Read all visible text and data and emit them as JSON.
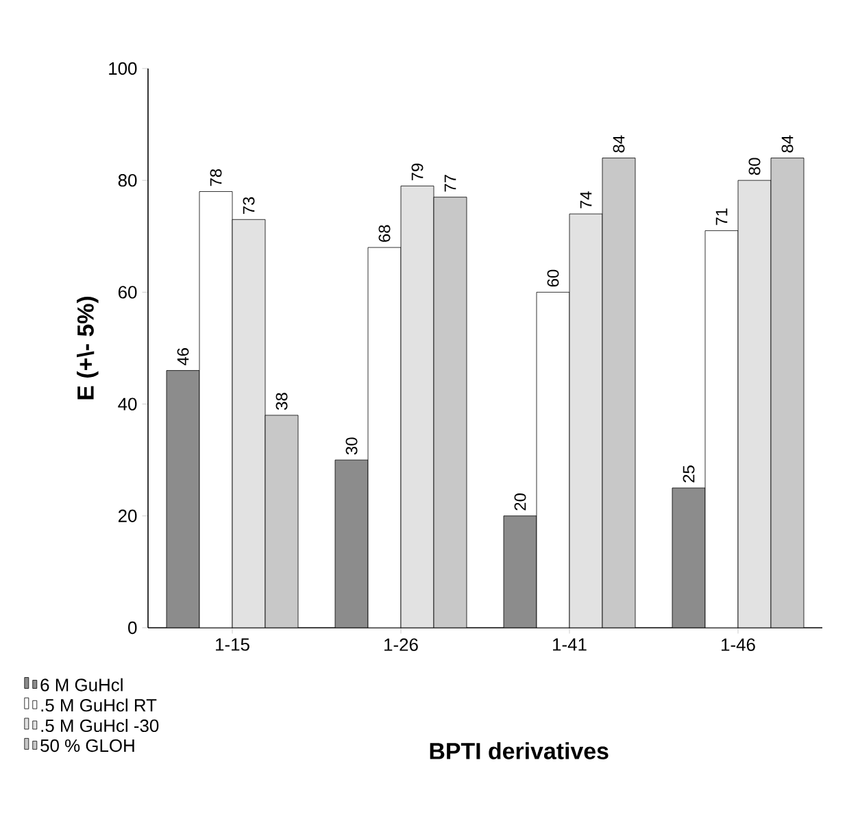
{
  "chart_data": {
    "type": "bar",
    "xlabel": "BPTI derivatives",
    "ylabel": "E (+\\- 5%)",
    "categories": [
      "1-15",
      "1-26",
      "1-41",
      "1-46"
    ],
    "series": [
      {
        "name": "6 M GuHcl",
        "color": "#8c8c8c",
        "values": [
          46,
          30,
          20,
          25
        ]
      },
      {
        "name": ".5 M GuHcl RT",
        "color": "#ffffff",
        "values": [
          78,
          68,
          60,
          71
        ]
      },
      {
        "name": ".5 M GuHcl -30",
        "color": "#e2e2e2",
        "values": [
          73,
          79,
          74,
          80
        ]
      },
      {
        "name": "50 % GLOH",
        "color": "#c8c8c8",
        "values": [
          38,
          77,
          84,
          84
        ]
      }
    ],
    "ylim": [
      0,
      100
    ],
    "yticks": [
      0,
      20,
      40,
      60,
      80,
      100
    ],
    "grid": false,
    "legend": "bottom left",
    "data_labels": true
  }
}
